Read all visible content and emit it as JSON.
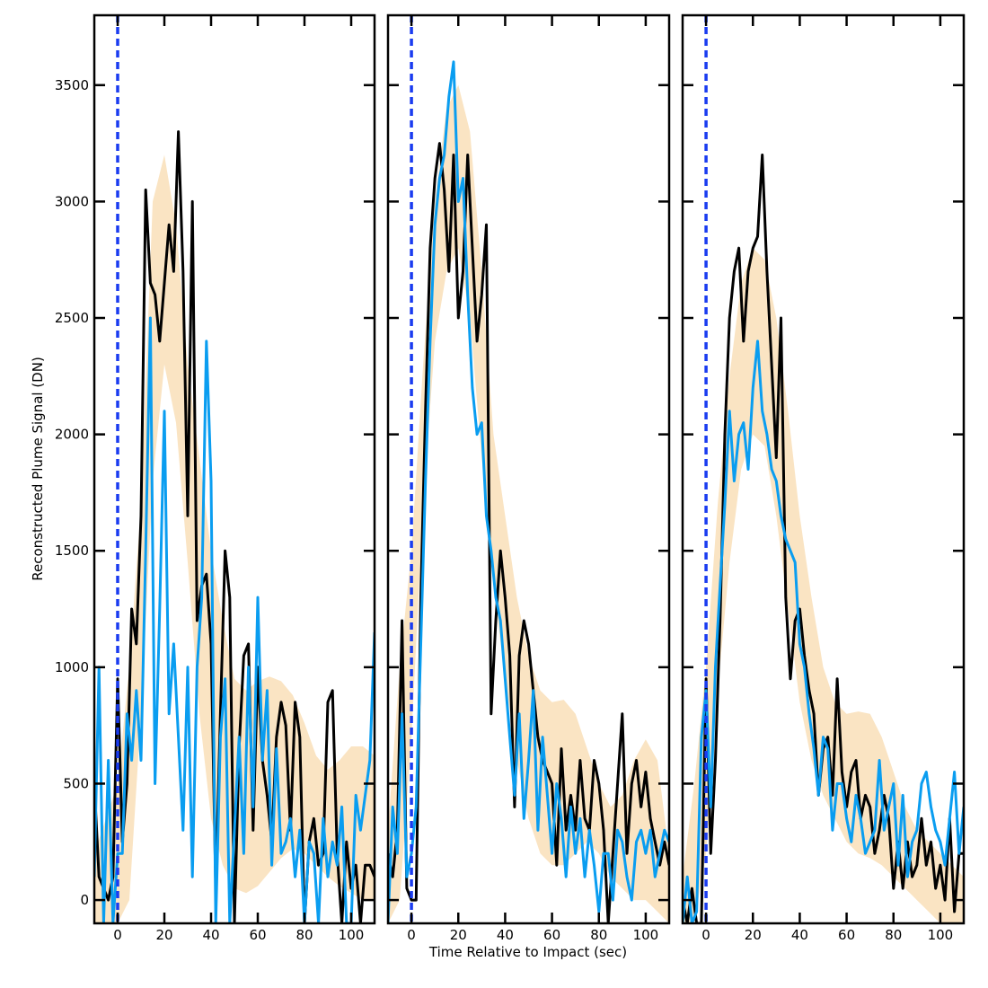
{
  "chart_data": {
    "type": "line",
    "xlabel": "Time Relative to Impact (sec)",
    "ylabel": "Reconstructed Plume Signal (DN)",
    "xlim": [
      -10,
      110
    ],
    "ylim": [
      -100,
      3800
    ],
    "xticks": [
      0,
      20,
      40,
      60,
      80,
      100
    ],
    "yticks": [
      0,
      500,
      1000,
      1500,
      2000,
      2500,
      3000,
      3500
    ],
    "impact_time": 0,
    "colors": {
      "observed": "#000000",
      "model": "#0a9df0",
      "envelope": "#f9dfb8",
      "impact_line": "#1a3cf0"
    },
    "panels": [
      {
        "envelope": {
          "x": [
            -10,
            0,
            5,
            10,
            15,
            20,
            25,
            30,
            35,
            40,
            45,
            50,
            55,
            60,
            65,
            70,
            75,
            80,
            85,
            90,
            95,
            100,
            105,
            110
          ],
          "upper": [
            200,
            500,
            1000,
            1700,
            3000,
            3200,
            2900,
            2300,
            1900,
            1500,
            1200,
            950,
            900,
            940,
            960,
            940,
            880,
            760,
            620,
            560,
            600,
            660,
            660,
            620
          ],
          "lower": [
            -100,
            -100,
            0,
            800,
            1800,
            2300,
            2050,
            1450,
            800,
            350,
            150,
            50,
            30,
            60,
            120,
            180,
            220,
            200,
            150,
            100,
            60,
            30,
            0,
            0
          ]
        },
        "series": [
          {
            "x": [
              -10,
              -8,
              -6,
              -4,
              -2,
              0,
              2,
              4,
              6,
              8,
              10,
              12,
              14,
              16,
              18,
              20,
              22,
              24,
              26,
              28,
              30,
              32,
              34,
              36,
              38,
              40,
              42,
              44,
              46,
              48,
              50,
              52,
              54,
              56,
              58,
              60,
              62,
              64,
              66,
              68,
              70,
              72,
              74,
              76,
              78,
              80,
              82,
              84,
              86,
              88,
              90,
              92,
              94,
              96,
              98,
              100,
              102,
              104,
              106,
              108,
              110
            ],
            "y": [
              500,
              100,
              50,
              0,
              100,
              950,
              250,
              500,
              1250,
              1100,
              1650,
              3050,
              2650,
              2600,
              2400,
              2650,
              2900,
              2700,
              3300,
              2700,
              1650,
              3000,
              1200,
              1350,
              1400,
              1100,
              50,
              800,
              1500,
              1300,
              -100,
              650,
              1050,
              1100,
              300,
              1000,
              600,
              450,
              250,
              700,
              850,
              750,
              300,
              850,
              700,
              -100,
              250,
              350,
              150,
              200,
              850,
              900,
              200,
              -100,
              250,
              50,
              150,
              -100,
              150,
              150,
              100
            ]
          },
          {
            "x": [
              -10,
              -8,
              -6,
              -4,
              -2,
              0,
              2,
              4,
              6,
              8,
              10,
              12,
              14,
              16,
              18,
              20,
              22,
              24,
              26,
              28,
              30,
              32,
              34,
              36,
              38,
              40,
              42,
              44,
              46,
              48,
              50,
              52,
              54,
              56,
              58,
              60,
              62,
              64,
              66,
              68,
              70,
              72,
              74,
              76,
              78,
              80,
              82,
              84,
              86,
              88,
              90,
              92,
              94,
              96,
              98,
              100,
              102,
              104,
              106,
              108,
              110
            ],
            "y": [
              100,
              1000,
              -100,
              600,
              -100,
              200,
              200,
              800,
              600,
              900,
              600,
              1500,
              2500,
              500,
              1250,
              2100,
              800,
              1100,
              700,
              300,
              1000,
              100,
              1000,
              1300,
              2400,
              1800,
              -100,
              700,
              950,
              -100,
              300,
              700,
              200,
              1000,
              400,
              1300,
              600,
              900,
              150,
              650,
              200,
              250,
              350,
              100,
              300,
              -100,
              250,
              200,
              -100,
              350,
              100,
              250,
              150,
              400,
              -100,
              -100,
              450,
              300,
              450,
              600,
              1150
            ]
          }
        ]
      },
      {
        "envelope": {
          "x": [
            -10,
            -5,
            0,
            5,
            10,
            15,
            20,
            25,
            30,
            35,
            40,
            45,
            50,
            55,
            60,
            65,
            70,
            75,
            80,
            85,
            90,
            95,
            100,
            105,
            110
          ],
          "upper": [
            300,
            1000,
            1500,
            2300,
            3000,
            3400,
            3500,
            3300,
            2700,
            2000,
            1650,
            1300,
            1050,
            900,
            850,
            860,
            800,
            650,
            500,
            400,
            450,
            600,
            690,
            600,
            200
          ],
          "lower": [
            -100,
            0,
            700,
            1700,
            2400,
            2700,
            2800,
            2500,
            1900,
            1350,
            950,
            600,
            350,
            200,
            150,
            150,
            200,
            250,
            200,
            100,
            50,
            0,
            0,
            -50,
            -100
          ]
        },
        "series": [
          {
            "x": [
              -10,
              -8,
              -6,
              -4,
              -2,
              0,
              2,
              4,
              6,
              8,
              10,
              12,
              14,
              16,
              18,
              20,
              22,
              24,
              26,
              28,
              30,
              32,
              34,
              36,
              38,
              40,
              42,
              44,
              46,
              48,
              50,
              52,
              54,
              56,
              58,
              60,
              62,
              64,
              66,
              68,
              70,
              72,
              74,
              76,
              78,
              80,
              82,
              84,
              86,
              88,
              90,
              92,
              94,
              96,
              98,
              100,
              102,
              104,
              106,
              108,
              110
            ],
            "y": [
              200,
              100,
              300,
              1200,
              50,
              0,
              0,
              1300,
              2100,
              2800,
              3100,
              3250,
              3050,
              2700,
              3200,
              2500,
              2700,
              3200,
              2800,
              2400,
              2600,
              2900,
              800,
              1200,
              1500,
              1300,
              1050,
              400,
              1050,
              1200,
              1100,
              900,
              700,
              600,
              550,
              500,
              150,
              650,
              300,
              450,
              300,
              600,
              350,
              300,
              600,
              500,
              300,
              -100,
              200,
              500,
              800,
              200,
              500,
              600,
              400,
              550,
              350,
              250,
              150,
              250,
              150
            ]
          },
          {
            "x": [
              -10,
              -8,
              -6,
              -4,
              -2,
              0,
              2,
              4,
              6,
              8,
              10,
              12,
              14,
              16,
              18,
              20,
              22,
              24,
              26,
              28,
              30,
              32,
              34,
              36,
              38,
              40,
              42,
              44,
              46,
              48,
              50,
              52,
              54,
              56,
              58,
              60,
              62,
              64,
              66,
              68,
              70,
              72,
              74,
              76,
              78,
              80,
              82,
              84,
              86,
              88,
              90,
              92,
              94,
              96,
              98,
              100,
              102,
              104,
              106,
              108,
              110
            ],
            "y": [
              -100,
              400,
              200,
              800,
              100,
              200,
              400,
              1100,
              1800,
              2400,
              2900,
              3100,
              3200,
              3450,
              3600,
              3000,
              3100,
              2600,
              2200,
              2000,
              2050,
              1650,
              1500,
              1300,
              1200,
              950,
              700,
              450,
              800,
              350,
              600,
              900,
              300,
              700,
              450,
              200,
              500,
              350,
              100,
              400,
              200,
              350,
              100,
              300,
              150,
              -50,
              200,
              200,
              0,
              300,
              250,
              100,
              0,
              250,
              300,
              200,
              300,
              100,
              200,
              300,
              250
            ]
          }
        ]
      },
      {
        "envelope": {
          "x": [
            -10,
            -5,
            0,
            5,
            10,
            15,
            20,
            25,
            30,
            35,
            40,
            45,
            50,
            55,
            60,
            65,
            70,
            75,
            80,
            85,
            90,
            95,
            100,
            105,
            110
          ],
          "upper": [
            100,
            500,
            1000,
            1700,
            2250,
            2650,
            2800,
            2750,
            2500,
            2100,
            1650,
            1300,
            1000,
            850,
            800,
            810,
            800,
            700,
            550,
            400,
            300,
            250,
            200,
            150,
            100
          ],
          "lower": [
            -100,
            -100,
            200,
            900,
            1450,
            1850,
            2000,
            1950,
            1650,
            1250,
            850,
            600,
            450,
            350,
            250,
            200,
            180,
            150,
            100,
            50,
            0,
            -50,
            -100,
            -100,
            -100
          ]
        },
        "series": [
          {
            "x": [
              -10,
              -8,
              -6,
              -4,
              -2,
              0,
              2,
              4,
              6,
              8,
              10,
              12,
              14,
              16,
              18,
              20,
              22,
              24,
              26,
              28,
              30,
              32,
              34,
              36,
              38,
              40,
              42,
              44,
              46,
              48,
              50,
              52,
              54,
              56,
              58,
              60,
              62,
              64,
              66,
              68,
              70,
              72,
              74,
              76,
              78,
              80,
              82,
              84,
              86,
              88,
              90,
              92,
              94,
              96,
              98,
              100,
              102,
              104,
              106,
              108,
              110
            ],
            "y": [
              0,
              -100,
              50,
              -100,
              -100,
              950,
              200,
              600,
              1200,
              2000,
              2500,
              2700,
              2800,
              2400,
              2700,
              2800,
              2850,
              3200,
              2700,
              2300,
              1900,
              2500,
              1300,
              950,
              1200,
              1250,
              1050,
              900,
              800,
              450,
              650,
              700,
              450,
              950,
              550,
              400,
              550,
              600,
              350,
              450,
              400,
              200,
              300,
              450,
              350,
              50,
              250,
              50,
              250,
              100,
              150,
              350,
              150,
              250,
              50,
              150,
              0,
              350,
              -50,
              200,
              200
            ]
          },
          {
            "x": [
              -10,
              -8,
              -6,
              -4,
              -2,
              0,
              2,
              4,
              6,
              8,
              10,
              12,
              14,
              16,
              18,
              20,
              22,
              24,
              26,
              28,
              30,
              32,
              34,
              36,
              38,
              40,
              42,
              44,
              46,
              48,
              50,
              52,
              54,
              56,
              58,
              60,
              62,
              64,
              66,
              68,
              70,
              72,
              74,
              76,
              78,
              80,
              82,
              84,
              86,
              88,
              90,
              92,
              94,
              96,
              98,
              100,
              102,
              104,
              106,
              108,
              110
            ],
            "y": [
              -100,
              100,
              -100,
              -50,
              700,
              900,
              400,
              1000,
              1350,
              1700,
              2100,
              1800,
              2000,
              2050,
              1850,
              2200,
              2400,
              2100,
              2000,
              1850,
              1800,
              1650,
              1550,
              1500,
              1450,
              1100,
              1000,
              800,
              650,
              450,
              700,
              650,
              300,
              500,
              500,
              350,
              250,
              450,
              350,
              200,
              250,
              300,
              600,
              300,
              400,
              500,
              150,
              450,
              100,
              250,
              300,
              500,
              550,
              400,
              300,
              250,
              150,
              350,
              550,
              200,
              400
            ]
          }
        ]
      }
    ]
  }
}
